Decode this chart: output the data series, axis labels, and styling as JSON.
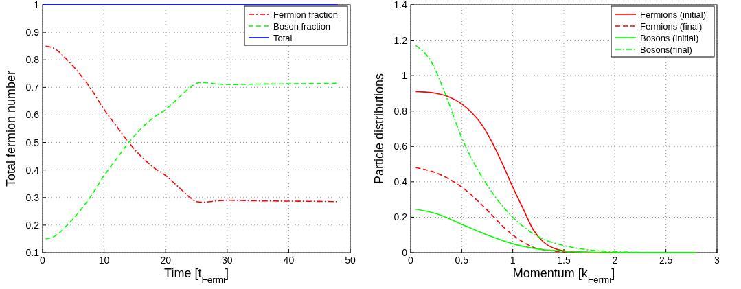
{
  "chart_data": [
    {
      "type": "line",
      "xlabel": "Time [t$_{Fermi}$]",
      "ylabel": "Total fermion number",
      "xlim": [
        0,
        50
      ],
      "ylim": [
        0.1,
        1
      ],
      "xticks": [
        0,
        10,
        20,
        30,
        40,
        50
      ],
      "yticks": [
        0.1,
        0.2,
        0.3,
        0.4,
        0.5,
        0.6,
        0.7,
        0.8,
        0.9,
        1
      ],
      "grid": true,
      "legend": "top right",
      "series": [
        {
          "name": "Fermion fraction",
          "color": "#ff0000",
          "line_style": "dotted",
          "x": [
            0.5,
            2,
            4,
            6,
            8,
            10,
            12,
            14,
            16,
            18,
            20,
            22,
            24,
            25,
            26,
            28,
            30,
            35,
            40,
            45,
            48
          ],
          "values": [
            0.85,
            0.84,
            0.8,
            0.75,
            0.69,
            0.62,
            0.56,
            0.5,
            0.45,
            0.41,
            0.38,
            0.34,
            0.3,
            0.285,
            0.283,
            0.287,
            0.29,
            0.288,
            0.287,
            0.286,
            0.285
          ]
        },
        {
          "name": "Boson fraction",
          "color": "#00ff00",
          "line_style": "dashed",
          "x": [
            0.5,
            2,
            4,
            6,
            8,
            10,
            12,
            14,
            16,
            18,
            20,
            22,
            24,
            25,
            26,
            28,
            30,
            35,
            40,
            45,
            48
          ],
          "values": [
            0.15,
            0.16,
            0.2,
            0.25,
            0.31,
            0.38,
            0.44,
            0.5,
            0.55,
            0.59,
            0.62,
            0.66,
            0.7,
            0.715,
            0.718,
            0.713,
            0.71,
            0.712,
            0.713,
            0.714,
            0.715
          ]
        },
        {
          "name": "Total",
          "color": "#0000ff",
          "line_style": "solid",
          "x": [
            0,
            48
          ],
          "values": [
            1,
            1
          ]
        }
      ]
    },
    {
      "type": "line",
      "xlabel": "Momentum [k$_{Fermi}$]",
      "ylabel": "Particle distributions",
      "xlim": [
        0,
        3
      ],
      "ylim": [
        0,
        1.4
      ],
      "xticks": [
        0,
        0.5,
        1,
        1.5,
        2,
        2.5,
        3
      ],
      "yticks": [
        0,
        0.2,
        0.4,
        0.6,
        0.8,
        1,
        1.2,
        1.4
      ],
      "grid": true,
      "legend": "top right",
      "series": [
        {
          "name": "Fermions (initial)",
          "color": "#ff0000",
          "line_style": "solid",
          "x": [
            0.05,
            0.25,
            0.5,
            0.6,
            0.7,
            0.8,
            0.9,
            1,
            1.1,
            1.2,
            1.3,
            1.4,
            1.5,
            1.75,
            2
          ],
          "values": [
            0.91,
            0.9,
            0.84,
            0.79,
            0.72,
            0.62,
            0.5,
            0.37,
            0.25,
            0.13,
            0.06,
            0.025,
            0.01,
            0.002,
            0
          ]
        },
        {
          "name": "Fermions (final)",
          "color": "#ff0000",
          "line_style": "dashed",
          "x": [
            0.05,
            0.25,
            0.5,
            0.75,
            0.9,
            1,
            1.1,
            1.2,
            1.35,
            1.5,
            1.75,
            2
          ],
          "values": [
            0.48,
            0.45,
            0.37,
            0.24,
            0.15,
            0.1,
            0.06,
            0.03,
            0.012,
            0.005,
            0.001,
            0
          ]
        },
        {
          "name": "Bosons (initial)",
          "color": "#00ff00",
          "line_style": "solid",
          "x": [
            0.05,
            0.25,
            0.5,
            0.75,
            1,
            1.25,
            1.5,
            1.75,
            2,
            2.5,
            2.8
          ],
          "values": [
            0.245,
            0.22,
            0.16,
            0.1,
            0.05,
            0.02,
            0.008,
            0.002,
            0,
            0,
            0
          ]
        },
        {
          "name": "Bosons(final)",
          "color": "#00ff00",
          "line_style": "dotted",
          "x": [
            0.05,
            0.2,
            0.35,
            0.5,
            0.75,
            1,
            1.25,
            1.5,
            1.75,
            2,
            2.5,
            2.8
          ],
          "values": [
            1.17,
            1.08,
            0.88,
            0.65,
            0.38,
            0.2,
            0.09,
            0.04,
            0.015,
            0.005,
            0,
            0
          ]
        }
      ]
    }
  ]
}
